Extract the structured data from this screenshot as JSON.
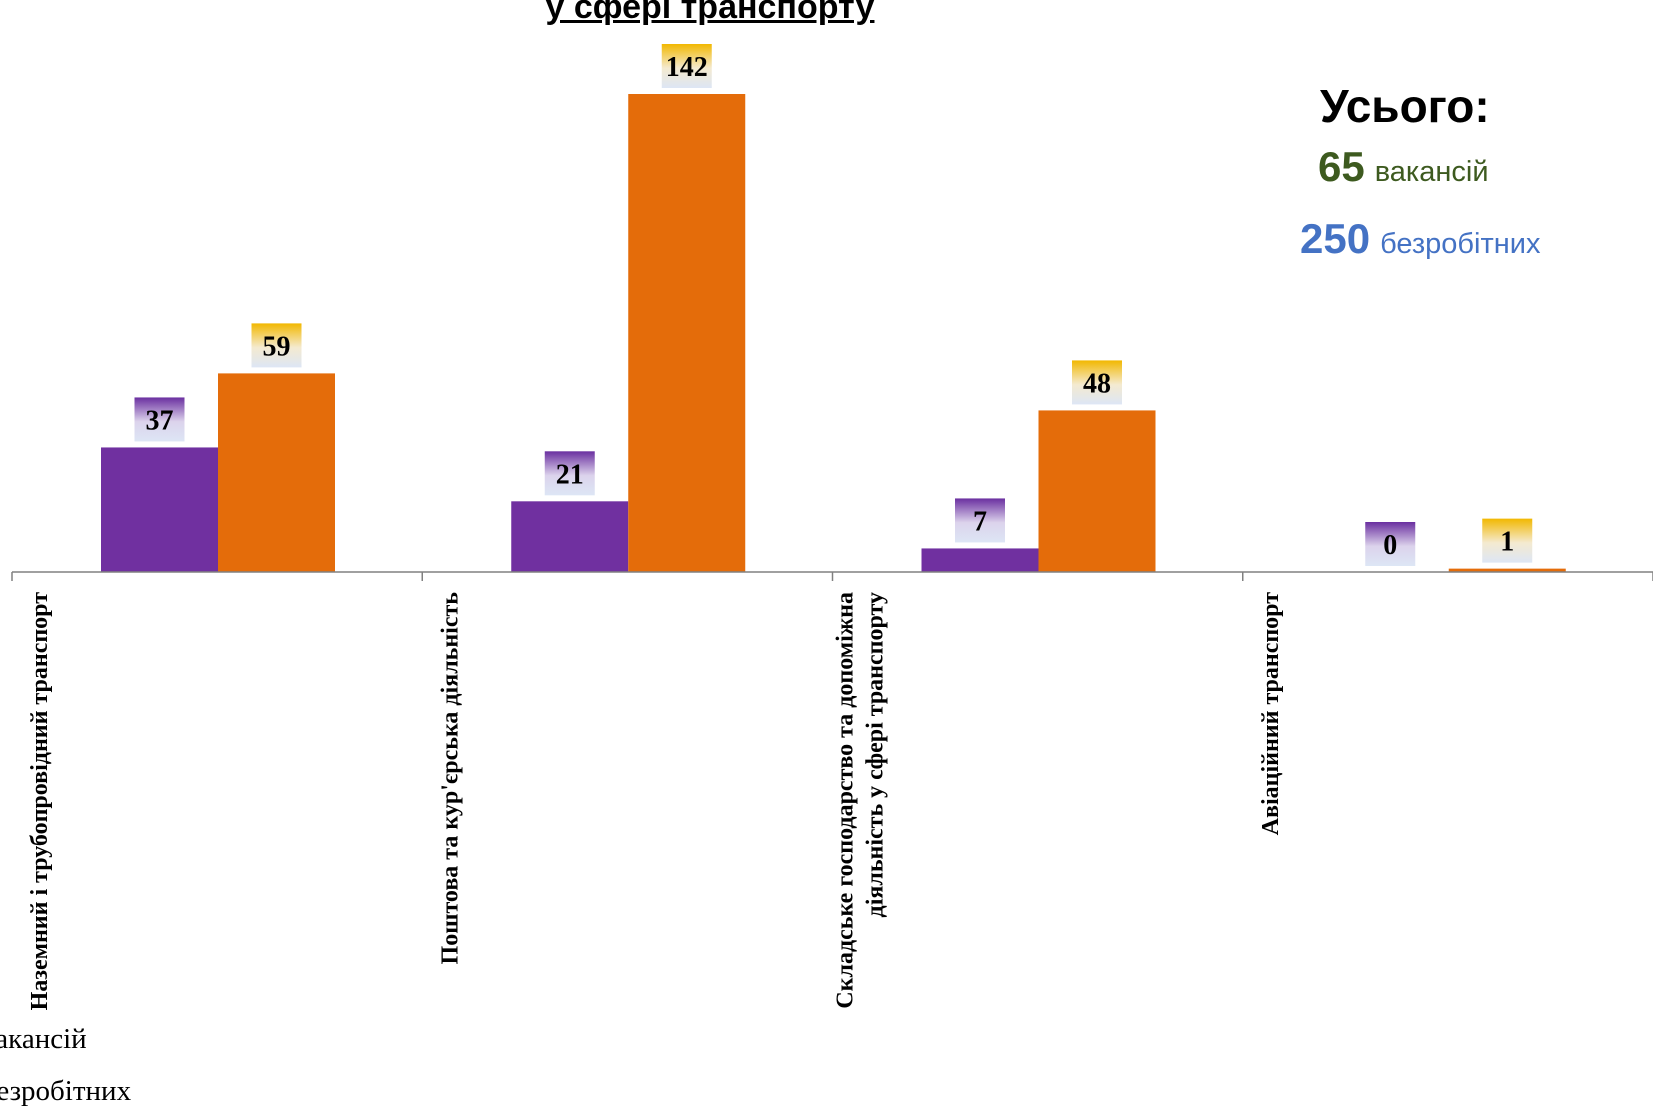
{
  "chart_data": {
    "type": "bar",
    "title": "у сфері транспорту",
    "categories": [
      [
        "Наземний і трубопровідний транспорт"
      ],
      [
        "Поштова та кур'єрська діяльність"
      ],
      [
        "Складське господарство та допоміжна",
        "діяльність у сфері транспорту"
      ],
      [
        "Авіаційний транспорт"
      ]
    ],
    "series": [
      {
        "name": "вакансій",
        "color": "#7030a0",
        "values": [
          37,
          21,
          7,
          0
        ]
      },
      {
        "name": "безробітних",
        "color": "#e46c0a",
        "values": [
          59,
          142,
          48,
          1
        ]
      }
    ],
    "ylim": [
      0,
      142
    ],
    "grid": false,
    "legend_position": "bottom-left"
  },
  "summary": {
    "title": "Усього:",
    "vacancies_count": "65",
    "vacancies_label": "вакансій",
    "unemployed_count": "250",
    "unemployed_label": "безробітних"
  }
}
